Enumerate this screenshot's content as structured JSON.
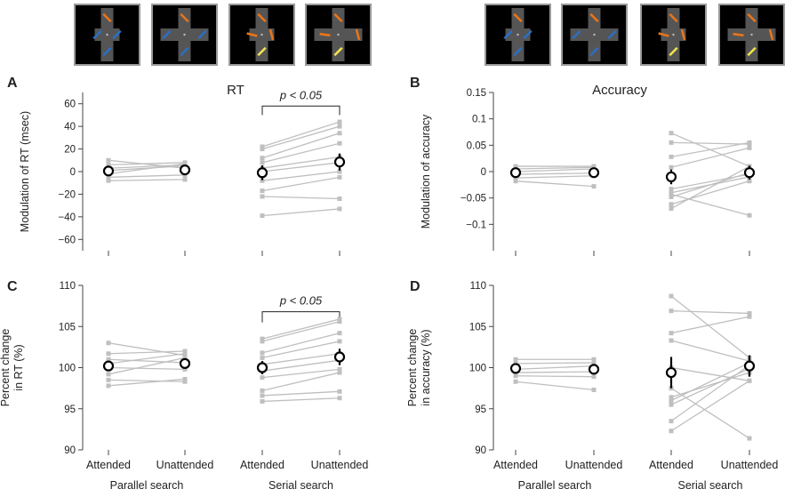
{
  "colors": {
    "stim_bg": "#000000",
    "stim_border": "#9a9a9a",
    "stim_cross": "#555555",
    "stim_orange": "#e8751a",
    "stim_blue": "#2a6fc4",
    "stim_yellow": "#f2e24c",
    "stim_fix": "#bbbbbb",
    "subject_line": "#bfbfbf",
    "mean_marker": "#000000"
  },
  "stimuli": {
    "group_left": [
      {
        "name": "parallel-narrow",
        "wide": false,
        "serial": false
      },
      {
        "name": "parallel-wide",
        "wide": true,
        "serial": false
      },
      {
        "name": "serial-narrow",
        "wide": false,
        "serial": true
      },
      {
        "name": "serial-wide",
        "wide": true,
        "serial": true
      }
    ],
    "group_right": [
      {
        "name": "parallel-narrow",
        "wide": false,
        "serial": false
      },
      {
        "name": "parallel-wide",
        "wide": true,
        "serial": false
      },
      {
        "name": "serial-narrow",
        "wide": false,
        "serial": true
      },
      {
        "name": "serial-wide",
        "wide": true,
        "serial": true
      }
    ]
  },
  "chart_data": [
    {
      "type": "scatter",
      "panel_label": "A",
      "title": "RT",
      "ylabel": "Modulation of RT (msec)",
      "ylim": [
        -70,
        70
      ],
      "yticks": [
        -60,
        -40,
        -20,
        0,
        20,
        40,
        60
      ],
      "ytick_labels": [
        "−60",
        "−40",
        "−20",
        "0",
        "20",
        "40",
        "60"
      ],
      "categories": [
        "Attended",
        "Unattended",
        "Attended",
        "Unattended"
      ],
      "show_xticklabels": false,
      "groups": [],
      "significance": {
        "label": "p < 0.05",
        "x_from": 2,
        "x_to": 3,
        "y": 58,
        "drop": 8
      },
      "pairs": [
        {
          "x": [
            0,
            1
          ],
          "subjects": [
            [
              10,
              3
            ],
            [
              6,
              8
            ],
            [
              3,
              6
            ],
            [
              1,
              5
            ],
            [
              -2,
              7
            ],
            [
              -5,
              -3
            ],
            [
              -8,
              -7
            ]
          ],
          "mean": [
            0.5,
            1.5
          ],
          "err": [
            2.5,
            2.5
          ]
        },
        {
          "x": [
            2,
            3
          ],
          "subjects": [
            [
              22,
              44
            ],
            [
              20,
              40
            ],
            [
              12,
              34
            ],
            [
              8,
              25
            ],
            [
              3,
              13
            ],
            [
              0,
              8
            ],
            [
              -8,
              0
            ],
            [
              -17,
              -5
            ],
            [
              -22,
              -24
            ],
            [
              -39,
              -33
            ]
          ],
          "mean": [
            -1,
            8.5
          ],
          "err": [
            6.5,
            7.5
          ]
        }
      ]
    },
    {
      "type": "scatter",
      "panel_label": "B",
      "title": "Accuracy",
      "ylabel": "Modulation of accuracy",
      "ylim": [
        -0.15,
        0.15
      ],
      "yticks": [
        -0.1,
        -0.05,
        0,
        0.05,
        0.1,
        0.15
      ],
      "ytick_labels": [
        "−0.1",
        "−0.05",
        "0",
        "0.05",
        "0.1",
        "0.15"
      ],
      "categories": [
        "Attended",
        "Unattended",
        "Attended",
        "Unattended"
      ],
      "show_xticklabels": false,
      "groups": [],
      "pairs": [
        {
          "x": [
            0,
            1
          ],
          "subjects": [
            [
              0.01,
              0.01
            ],
            [
              0.005,
              0.008
            ],
            [
              0,
              0.005
            ],
            [
              -0.005,
              -0.003
            ],
            [
              -0.012,
              -0.008
            ],
            [
              -0.018,
              -0.028
            ]
          ],
          "mean": [
            -0.002,
            -0.002
          ],
          "err": [
            0.004,
            0.005
          ]
        },
        {
          "x": [
            2,
            3
          ],
          "subjects": [
            [
              0.073,
              0.01
            ],
            [
              0.055,
              0.052
            ],
            [
              0.028,
              0.055
            ],
            [
              0.008,
              0.045
            ],
            [
              -0.033,
              -0.005
            ],
            [
              -0.04,
              -0.01
            ],
            [
              -0.048,
              -0.002
            ],
            [
              -0.062,
              -0.018
            ],
            [
              -0.07,
              0.01
            ],
            [
              -0.043,
              -0.083
            ]
          ],
          "mean": [
            -0.01,
            -0.002
          ],
          "err": [
            0.014,
            0.013
          ]
        }
      ]
    },
    {
      "type": "scatter",
      "panel_label": "C",
      "ylabel_lines": [
        "Percent change",
        "in RT (%)"
      ],
      "ylim": [
        90,
        110
      ],
      "yticks": [
        90,
        95,
        100,
        105,
        110
      ],
      "ytick_labels": [
        "90",
        "95",
        "100",
        "105",
        "110"
      ],
      "categories": [
        "Attended",
        "Unattended",
        "Attended",
        "Unattended"
      ],
      "show_xticklabels": true,
      "groups": [
        {
          "label": "Parallel search",
          "x": [
            0,
            1
          ]
        },
        {
          "label": "Serial search",
          "x": [
            2,
            3
          ]
        }
      ],
      "significance": {
        "label": "p < 0.05",
        "x_from": 2,
        "x_to": 3,
        "y": 106.8,
        "drop": 1.3
      },
      "pairs": [
        {
          "x": [
            0,
            1
          ],
          "subjects": [
            [
              103,
              101.5
            ],
            [
              101.7,
              102
            ],
            [
              101,
              100.6
            ],
            [
              100.5,
              101.7
            ],
            [
              100,
              99.8
            ],
            [
              99.2,
              101.2
            ],
            [
              98.5,
              98.3
            ],
            [
              97.8,
              98.6
            ]
          ],
          "mean": [
            100.2,
            100.5
          ],
          "err": [
            0.5,
            0.5
          ]
        },
        {
          "x": [
            2,
            3
          ],
          "subjects": [
            [
              103.5,
              105.9
            ],
            [
              103.2,
              105.6
            ],
            [
              101.8,
              104.2
            ],
            [
              101.2,
              103.2
            ],
            [
              100.4,
              101.7
            ],
            [
              99.6,
              100.9
            ],
            [
              98.8,
              99.8
            ],
            [
              97.2,
              99.4
            ],
            [
              96.6,
              97.1
            ],
            [
              95.9,
              96.3
            ]
          ],
          "mean": [
            100,
            101.3
          ],
          "err": [
            0.8,
            1.0
          ]
        }
      ]
    },
    {
      "type": "scatter",
      "panel_label": "D",
      "ylabel_lines": [
        "Percent change",
        "in accuracy (%)"
      ],
      "ylim": [
        90,
        110
      ],
      "yticks": [
        90,
        95,
        100,
        105,
        110
      ],
      "ytick_labels": [
        "90",
        "95",
        "100",
        "105",
        "110"
      ],
      "categories": [
        "Attended",
        "Unattended",
        "Attended",
        "Unattended"
      ],
      "show_xticklabels": true,
      "groups": [
        {
          "label": "Parallel search",
          "x": [
            0,
            1
          ]
        },
        {
          "label": "Serial search",
          "x": [
            2,
            3
          ]
        }
      ],
      "pairs": [
        {
          "x": [
            0,
            1
          ],
          "subjects": [
            [
              101,
              101
            ],
            [
              100.5,
              100.6
            ],
            [
              99.8,
              100.2
            ],
            [
              99.4,
              99.5
            ],
            [
              99,
              98.9
            ],
            [
              98.3,
              97.3
            ]
          ],
          "mean": [
            99.9,
            99.8
          ],
          "err": [
            0.3,
            0.4
          ]
        },
        {
          "x": [
            2,
            3
          ],
          "subjects": [
            [
              108.7,
              101.2
            ],
            [
              106.9,
              106.6
            ],
            [
              104.2,
              106.2
            ],
            [
              103.3,
              100.8
            ],
            [
              100,
              98.4
            ],
            [
              96.4,
              99.4
            ],
            [
              96,
              100.6
            ],
            [
              95.5,
              99.9
            ],
            [
              93.5,
              100.3
            ],
            [
              92.3,
              98.4
            ],
            [
              97.5,
              91.4
            ]
          ],
          "mean": [
            99.4,
            100.2
          ],
          "err": [
            1.9,
            1.3
          ]
        }
      ]
    }
  ]
}
